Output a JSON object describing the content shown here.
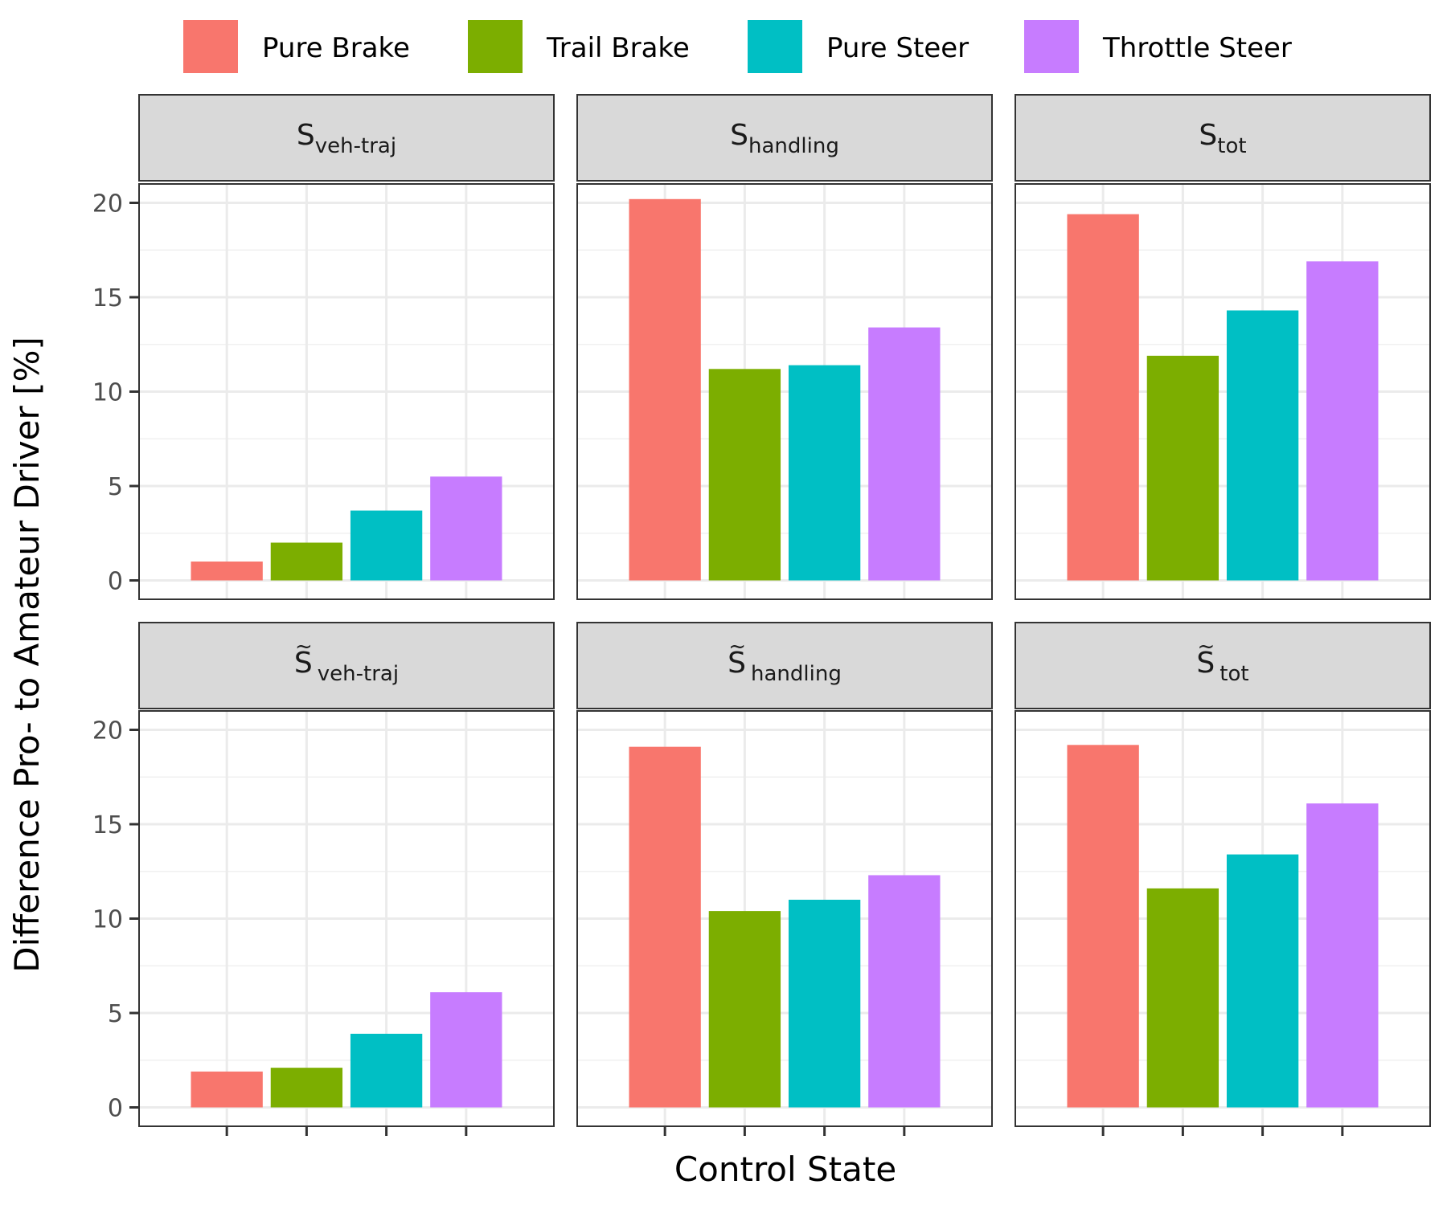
{
  "chart_data": {
    "type": "bar",
    "layout": "facet-grid 2x3",
    "xlabel": "Control State",
    "ylabel": "Difference  Pro- to Amateur Driver [%]",
    "ylim": [
      -1,
      21
    ],
    "yticks": [
      0,
      5,
      10,
      15,
      20
    ],
    "grid": true,
    "legend": {
      "position": "top",
      "entries": [
        "Pure Brake",
        "Trail Brake",
        "Pure Steer",
        "Throttle Steer"
      ]
    },
    "categories": [
      "Pure Brake",
      "Trail Brake",
      "Pure Steer",
      "Throttle Steer"
    ],
    "colors": [
      "#F8766D",
      "#7CAE00",
      "#00BFC4",
      "#C77CFF"
    ],
    "panels": [
      {
        "symbol": "S",
        "tilde": false,
        "subscript": "veh-traj",
        "values": [
          1.0,
          2.0,
          3.7,
          5.5
        ]
      },
      {
        "symbol": "S",
        "tilde": false,
        "subscript": "handling",
        "values": [
          20.2,
          11.2,
          11.4,
          13.4
        ]
      },
      {
        "symbol": "S",
        "tilde": false,
        "subscript": "tot",
        "values": [
          19.4,
          11.9,
          14.3,
          16.9
        ]
      },
      {
        "symbol": "S",
        "tilde": true,
        "subscript": "veh-traj",
        "values": [
          1.9,
          2.1,
          3.9,
          6.1
        ]
      },
      {
        "symbol": "S",
        "tilde": true,
        "subscript": "handling",
        "values": [
          19.1,
          10.4,
          11.0,
          12.3
        ]
      },
      {
        "symbol": "S",
        "tilde": true,
        "subscript": "tot",
        "values": [
          19.2,
          11.6,
          13.4,
          16.1
        ]
      }
    ]
  }
}
